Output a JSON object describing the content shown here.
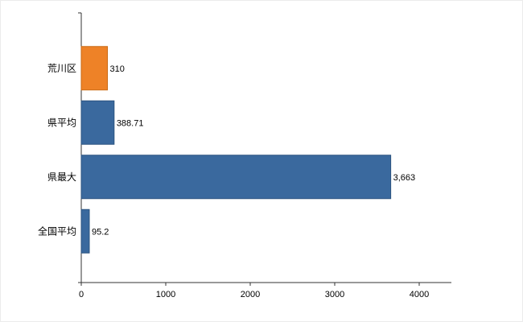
{
  "chart": {
    "title": ""
  },
  "chart_data": {
    "type": "bar",
    "orientation": "horizontal",
    "categories": [
      "荒川区",
      "県平均",
      "県最大",
      "全国平均"
    ],
    "values": [
      310,
      388.71,
      3663,
      95.2
    ],
    "value_labels": [
      "310",
      "388.71",
      "3,663",
      "95.2"
    ],
    "bar_colors": [
      "#EE8227",
      "#3A699E",
      "#3A699E",
      "#3A699E"
    ],
    "bar_border_colors": [
      "#C96A15",
      "#2D5480",
      "#2D5480",
      "#2D5480"
    ],
    "x_ticks": [
      0,
      1000,
      2000,
      3000,
      4000
    ],
    "x_tick_labels": [
      "0",
      "1000",
      "2000",
      "3000",
      "4000"
    ],
    "xlim": [
      0,
      4380
    ],
    "grid": false,
    "legend": false,
    "axis_color": "#333333",
    "background": "#ffffff"
  }
}
